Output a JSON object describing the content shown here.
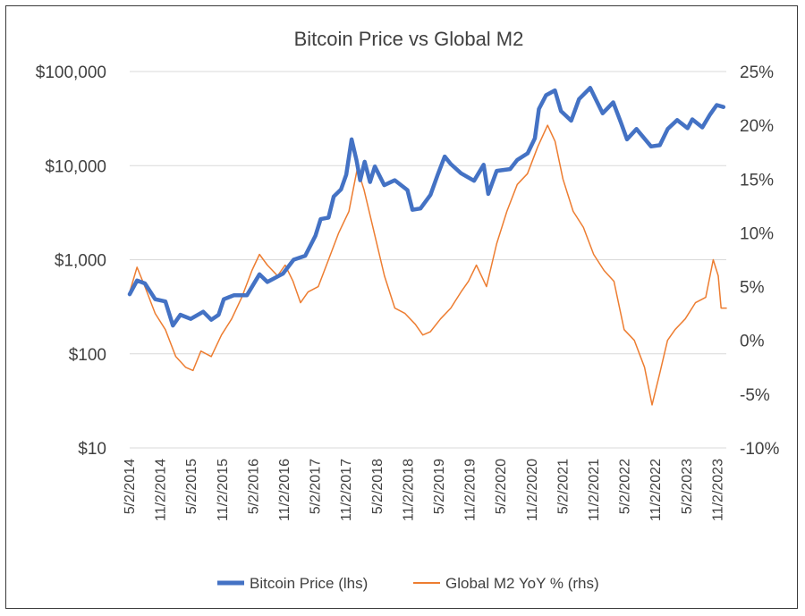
{
  "chart_data": {
    "type": "line",
    "title": "Bitcoin Price vs Global M2",
    "grid": true,
    "legend_position": "bottom",
    "x_tick_labels": [
      "5/2/2014",
      "11/2/2014",
      "5/2/2015",
      "11/2/2015",
      "5/2/2016",
      "11/2/2016",
      "5/2/2017",
      "11/2/2017",
      "5/2/2018",
      "11/2/2018",
      "5/2/2019",
      "11/2/2019",
      "5/2/2020",
      "11/2/2020",
      "5/2/2021",
      "11/2/2021",
      "5/2/2022",
      "11/2/2022",
      "5/2/2023",
      "11/2/2023"
    ],
    "x_range": [
      "2014-05-02",
      "2024-02-01"
    ],
    "y_left": {
      "scale": "log",
      "range": [
        10,
        100000
      ],
      "tick_labels": [
        "$100,000",
        "$10,000",
        "$1,000",
        "$100",
        "$10"
      ]
    },
    "y_right": {
      "range": [
        -10,
        25
      ],
      "tick_labels": [
        "25%",
        "20%",
        "15%",
        "10%",
        "5%",
        "0%",
        "-5%",
        "-10%"
      ]
    },
    "series": [
      {
        "name": "Bitcoin Price (lhs)",
        "axis": "left",
        "color": "#4472C4",
        "data": [
          [
            "2014-05-02",
            430
          ],
          [
            "2014-06-15",
            600
          ],
          [
            "2014-08-01",
            560
          ],
          [
            "2014-10-01",
            380
          ],
          [
            "2014-12-01",
            360
          ],
          [
            "2015-01-15",
            200
          ],
          [
            "2015-03-01",
            260
          ],
          [
            "2015-05-01",
            235
          ],
          [
            "2015-07-15",
            280
          ],
          [
            "2015-09-01",
            230
          ],
          [
            "2015-10-15",
            260
          ],
          [
            "2015-11-15",
            380
          ],
          [
            "2016-01-15",
            420
          ],
          [
            "2016-04-01",
            420
          ],
          [
            "2016-06-15",
            700
          ],
          [
            "2016-08-01",
            580
          ],
          [
            "2016-11-01",
            710
          ],
          [
            "2017-01-05",
            1000
          ],
          [
            "2017-03-15",
            1100
          ],
          [
            "2017-05-15",
            1800
          ],
          [
            "2017-06-15",
            2700
          ],
          [
            "2017-08-01",
            2800
          ],
          [
            "2017-09-01",
            4700
          ],
          [
            "2017-10-15",
            5600
          ],
          [
            "2017-11-15",
            8000
          ],
          [
            "2017-12-17",
            19000
          ],
          [
            "2018-01-15",
            11500
          ],
          [
            "2018-02-06",
            7000
          ],
          [
            "2018-03-05",
            11000
          ],
          [
            "2018-04-06",
            6700
          ],
          [
            "2018-05-05",
            9800
          ],
          [
            "2018-06-30",
            6200
          ],
          [
            "2018-09-01",
            7000
          ],
          [
            "2018-11-15",
            5500
          ],
          [
            "2018-12-15",
            3400
          ],
          [
            "2019-02-01",
            3500
          ],
          [
            "2019-04-02",
            4900
          ],
          [
            "2019-05-15",
            8000
          ],
          [
            "2019-06-26",
            12500
          ],
          [
            "2019-08-01",
            10400
          ],
          [
            "2019-10-01",
            8300
          ],
          [
            "2019-12-18",
            6900
          ],
          [
            "2020-02-13",
            10200
          ],
          [
            "2020-03-12",
            5000
          ],
          [
            "2020-05-01",
            8800
          ],
          [
            "2020-07-20",
            9200
          ],
          [
            "2020-09-01",
            11500
          ],
          [
            "2020-11-02",
            13500
          ],
          [
            "2020-12-15",
            19500
          ],
          [
            "2021-01-08",
            40000
          ],
          [
            "2021-02-20",
            56000
          ],
          [
            "2021-04-14",
            63000
          ],
          [
            "2021-05-20",
            38000
          ],
          [
            "2021-07-20",
            30000
          ],
          [
            "2021-09-05",
            51000
          ],
          [
            "2021-11-10",
            67000
          ],
          [
            "2022-01-24",
            36000
          ],
          [
            "2022-03-28",
            47000
          ],
          [
            "2022-05-12",
            29000
          ],
          [
            "2022-06-18",
            19000
          ],
          [
            "2022-08-14",
            24500
          ],
          [
            "2022-11-09",
            16000
          ],
          [
            "2022-12-31",
            16500
          ],
          [
            "2023-02-16",
            24500
          ],
          [
            "2023-04-14",
            30500
          ],
          [
            "2023-06-15",
            25000
          ],
          [
            "2023-07-13",
            31000
          ],
          [
            "2023-09-11",
            25500
          ],
          [
            "2023-10-25",
            34500
          ],
          [
            "2023-12-06",
            44000
          ],
          [
            "2024-01-15",
            42000
          ]
        ]
      },
      {
        "name": "Global M2 YoY % (rhs)",
        "axis": "right",
        "color": "#ED7D31",
        "data": [
          [
            "2014-05-02",
            4.5
          ],
          [
            "2014-06-15",
            6.8
          ],
          [
            "2014-08-01",
            5.0
          ],
          [
            "2014-10-01",
            2.5
          ],
          [
            "2014-12-01",
            1.0
          ],
          [
            "2015-02-01",
            -1.5
          ],
          [
            "2015-04-01",
            -2.5
          ],
          [
            "2015-05-15",
            -2.8
          ],
          [
            "2015-07-01",
            -1.0
          ],
          [
            "2015-09-01",
            -1.5
          ],
          [
            "2015-11-01",
            0.5
          ],
          [
            "2016-01-01",
            2.0
          ],
          [
            "2016-03-01",
            4.0
          ],
          [
            "2016-05-01",
            6.5
          ],
          [
            "2016-06-15",
            8.0
          ],
          [
            "2016-08-01",
            7.0
          ],
          [
            "2016-10-01",
            6.0
          ],
          [
            "2016-11-15",
            7.0
          ],
          [
            "2017-01-01",
            5.5
          ],
          [
            "2017-02-15",
            3.5
          ],
          [
            "2017-04-01",
            4.5
          ],
          [
            "2017-06-01",
            5.0
          ],
          [
            "2017-08-01",
            7.5
          ],
          [
            "2017-10-01",
            10.0
          ],
          [
            "2017-12-01",
            12.0
          ],
          [
            "2018-01-20",
            16.0
          ],
          [
            "2018-03-01",
            14.0
          ],
          [
            "2018-05-01",
            10.0
          ],
          [
            "2018-07-01",
            6.0
          ],
          [
            "2018-09-01",
            3.0
          ],
          [
            "2018-11-01",
            2.5
          ],
          [
            "2019-01-01",
            1.5
          ],
          [
            "2019-02-15",
            0.5
          ],
          [
            "2019-04-01",
            0.8
          ],
          [
            "2019-06-01",
            2.0
          ],
          [
            "2019-08-01",
            3.0
          ],
          [
            "2019-10-01",
            4.5
          ],
          [
            "2019-11-15",
            5.5
          ],
          [
            "2020-01-01",
            7.0
          ],
          [
            "2020-03-01",
            5.0
          ],
          [
            "2020-05-01",
            9.0
          ],
          [
            "2020-07-01",
            12.0
          ],
          [
            "2020-09-01",
            14.5
          ],
          [
            "2020-11-01",
            15.5
          ],
          [
            "2021-01-01",
            18.0
          ],
          [
            "2021-03-01",
            20.0
          ],
          [
            "2021-04-15",
            18.5
          ],
          [
            "2021-06-01",
            15.0
          ],
          [
            "2021-08-01",
            12.0
          ],
          [
            "2021-10-01",
            10.5
          ],
          [
            "2021-12-01",
            8.0
          ],
          [
            "2022-02-01",
            6.5
          ],
          [
            "2022-04-01",
            5.5
          ],
          [
            "2022-06-01",
            1.0
          ],
          [
            "2022-08-01",
            0.0
          ],
          [
            "2022-10-01",
            -2.5
          ],
          [
            "2022-11-15",
            -6.0
          ],
          [
            "2023-01-01",
            -3.0
          ],
          [
            "2023-02-15",
            0.0
          ],
          [
            "2023-04-01",
            1.0
          ],
          [
            "2023-06-01",
            2.0
          ],
          [
            "2023-08-01",
            3.5
          ],
          [
            "2023-10-01",
            4.0
          ],
          [
            "2023-11-15",
            7.5
          ],
          [
            "2023-12-15",
            6.0
          ],
          [
            "2024-01-01",
            3.0
          ],
          [
            "2024-02-01",
            3.0
          ]
        ]
      }
    ]
  }
}
